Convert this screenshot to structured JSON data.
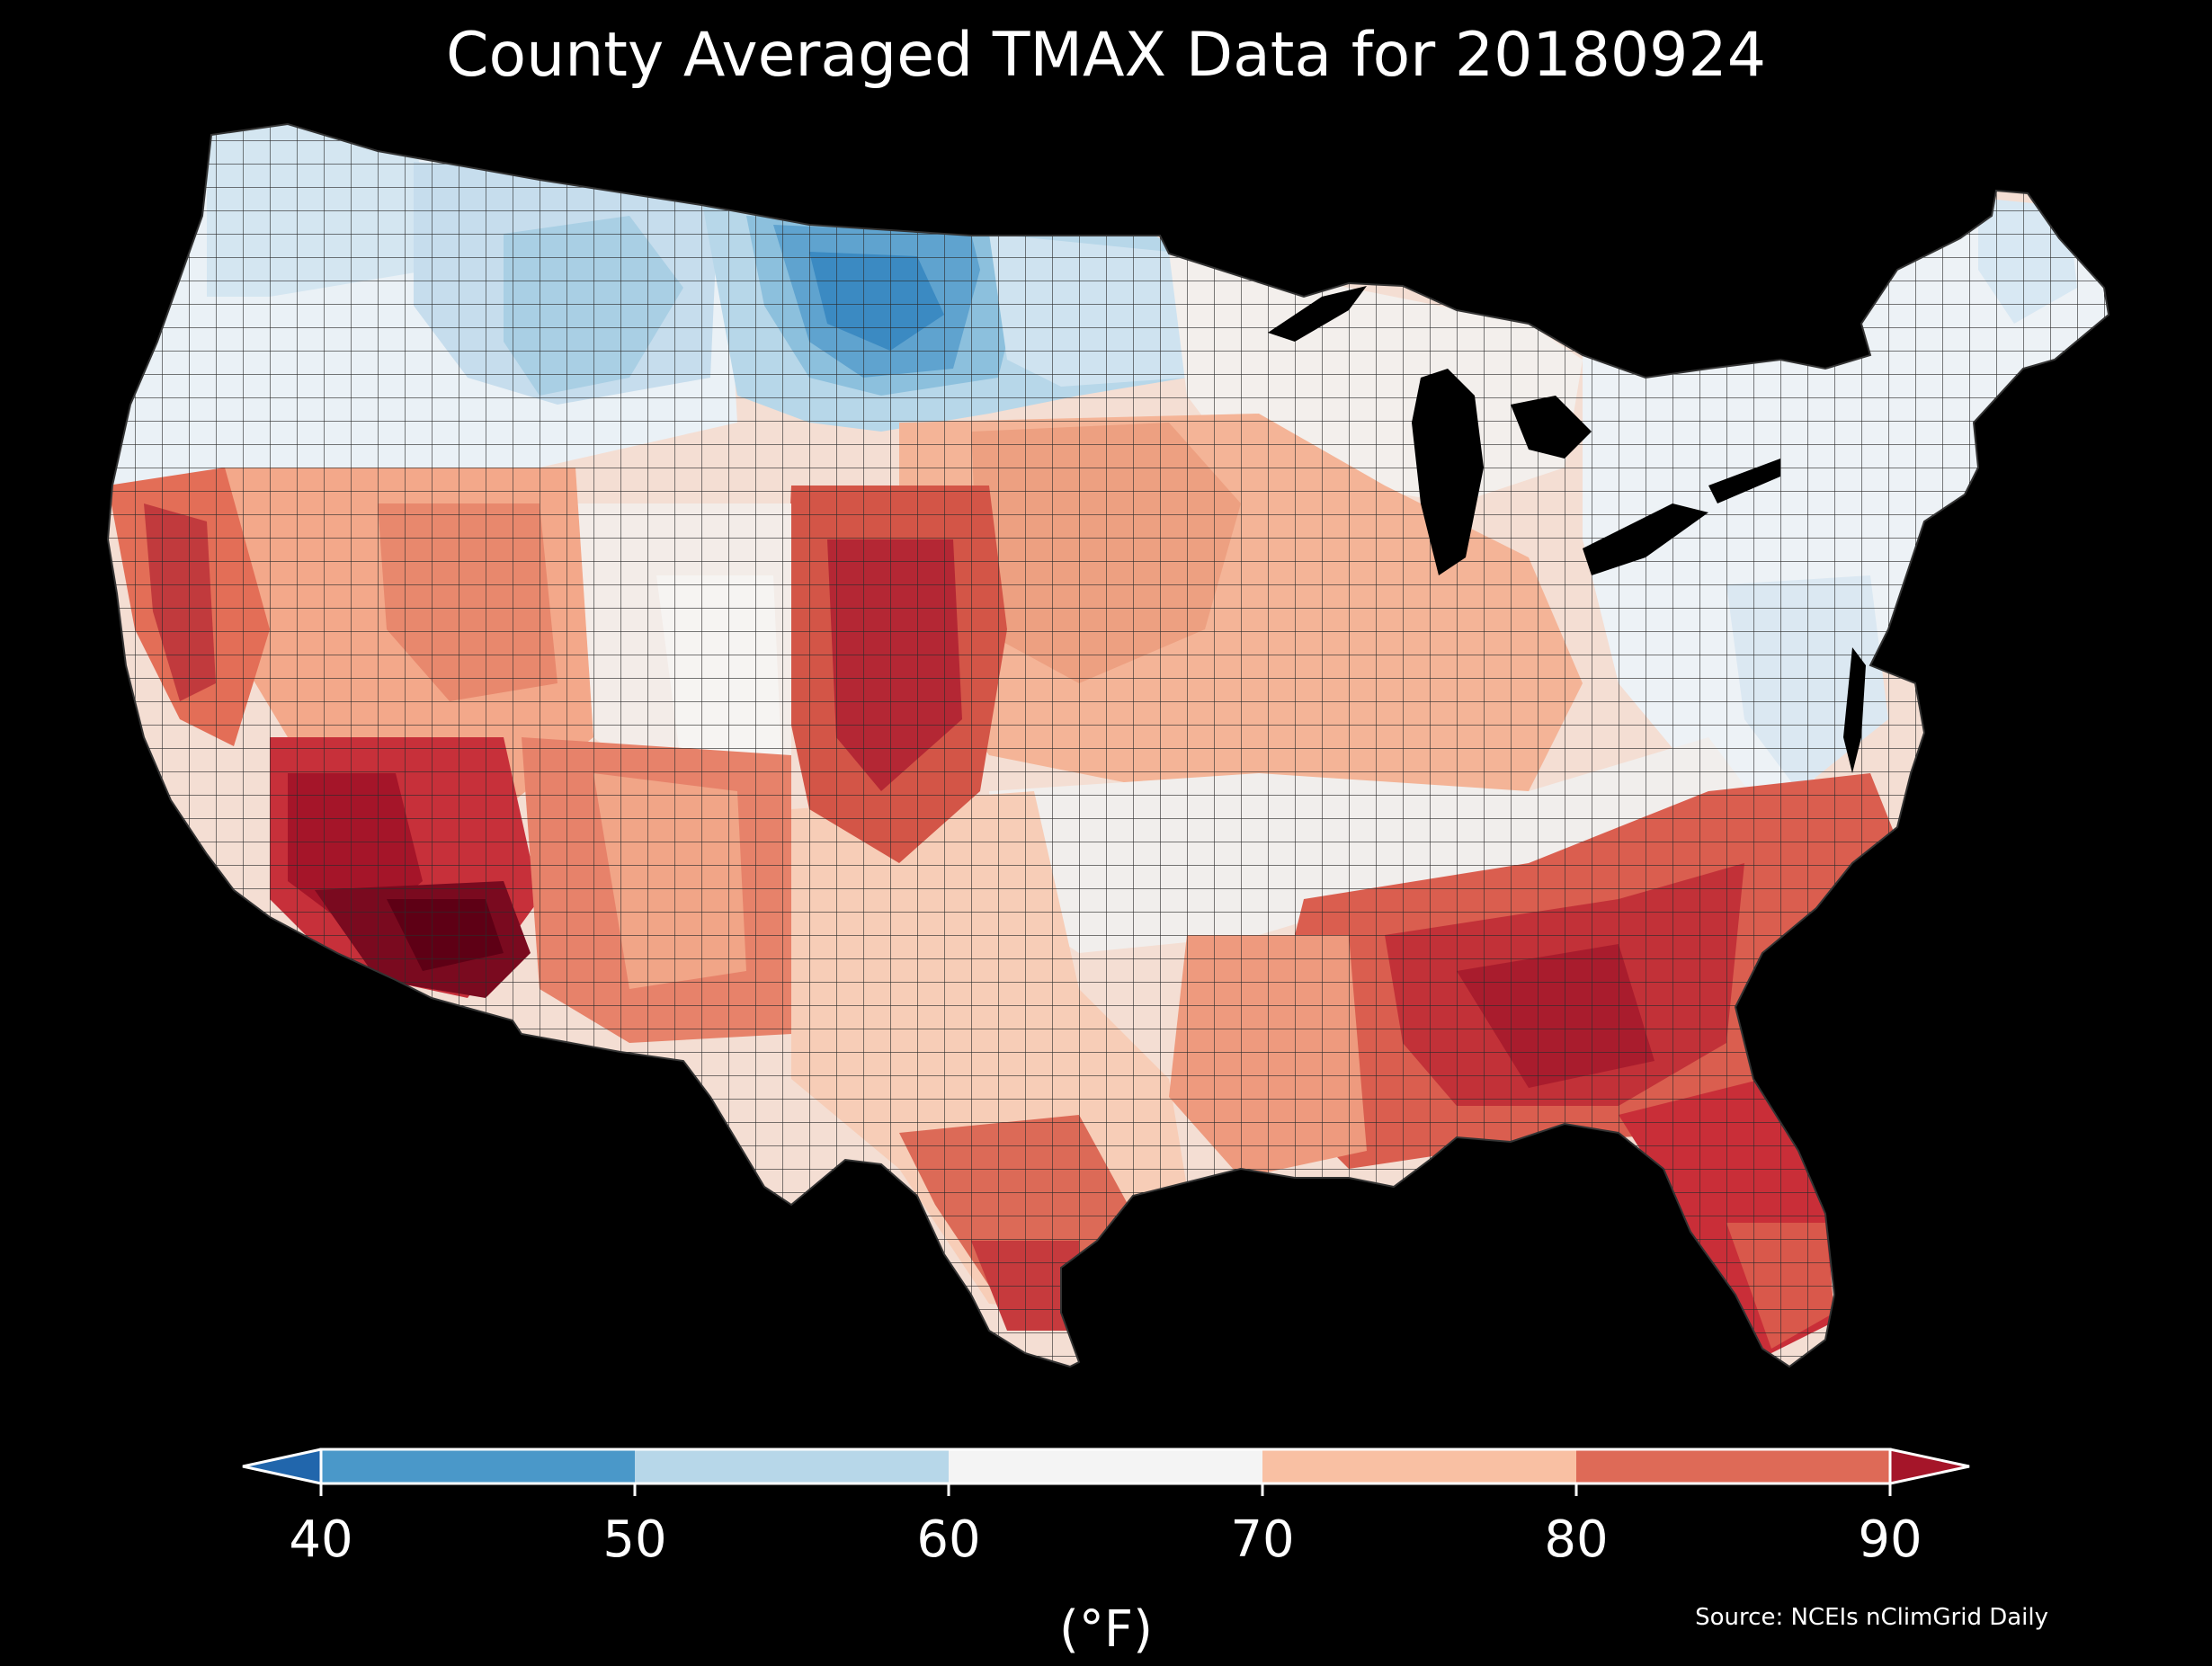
{
  "title": "County Averaged TMAX Data for 20180924",
  "colorbar": {
    "ticks": [
      "40",
      "50",
      "60",
      "70",
      "80",
      "90"
    ],
    "bins": [
      {
        "range": "<40",
        "color": "#2166ac"
      },
      {
        "range": "40-50",
        "color": "#4a98c9"
      },
      {
        "range": "50-60",
        "color": "#b7d7e9"
      },
      {
        "range": "60-70",
        "color": "#f4f4f4"
      },
      {
        "range": "70-80",
        "color": "#f9c0a3"
      },
      {
        "range": "80-90",
        "color": "#de6a57"
      },
      {
        "range": ">90",
        "color": "#a51529"
      }
    ],
    "unit": "(°F)"
  },
  "source": "Source: NCEIs nClimGrid Daily",
  "map_colors": {
    "deep_blue": "#3b8ac2",
    "blue": "#9ac8e0",
    "light_blue": "#d4e6f1",
    "white": "#f3f3f3",
    "light_salmon": "#fbd3bf",
    "salmon": "#f2a383",
    "coral": "#e0735c",
    "red": "#c3323a",
    "dark_red": "#8a0f22",
    "maroon": "#6a0018"
  }
}
